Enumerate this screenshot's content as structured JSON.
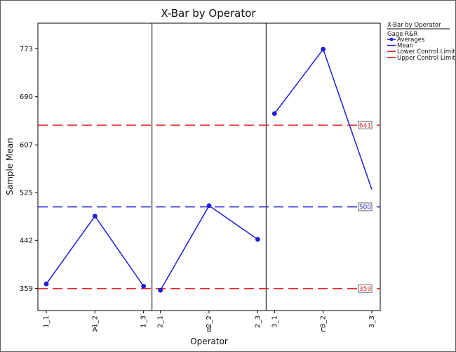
{
  "chart_data": {
    "type": "line",
    "title": "X-Bar by Operator",
    "xlabel": "Operator",
    "ylabel": "Sample Mean",
    "y_ticks": [
      359,
      442,
      525,
      607,
      690,
      773
    ],
    "ylim": [
      321,
      817
    ],
    "panels": [
      {
        "operator": "A",
        "x": [
          "1_1",
          "1_2",
          "1_3"
        ],
        "averages": [
          367,
          484,
          363
        ]
      },
      {
        "operator": "B",
        "x": [
          "2_1",
          "2_2",
          "2_3"
        ],
        "averages": [
          356,
          502,
          444
        ]
      },
      {
        "operator": "C",
        "x": [
          "3_1",
          "3_2",
          "3_3"
        ],
        "averages": [
          661,
          772,
          530
        ]
      }
    ],
    "mean": 500,
    "lower_control_limit": 359,
    "upper_control_limit": 641,
    "limit_labels": {
      "ucl": "641",
      "mean": "500",
      "lcl": "359"
    },
    "legend": {
      "title": "X-Bar by Operator",
      "group": "Gage R&R",
      "entries": [
        "Averages",
        "Mean",
        "Lower Control Limit",
        "Upper Control Limit"
      ],
      "placement": "right"
    },
    "colors": {
      "series": "#1f1fd6",
      "mean": "#1f1fd6",
      "limits": "#e3262b"
    },
    "grid": false
  }
}
